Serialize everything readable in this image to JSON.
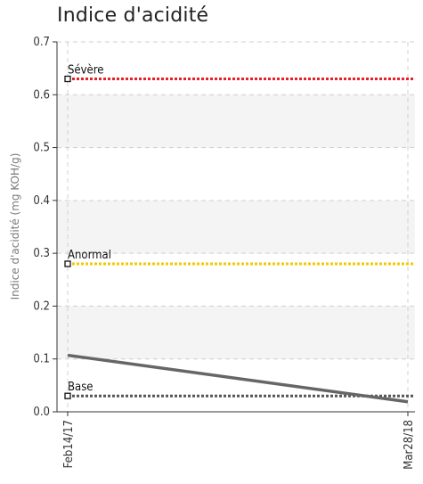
{
  "chart_data": {
    "type": "line",
    "title": "Indice d'acidité",
    "ylabel": "Indice d'acidité (mg KOH/g)",
    "xlabel": "",
    "ylim": [
      0,
      0.7
    ],
    "yticks": [
      "0.0",
      "0.1",
      "0.2",
      "0.3",
      "0.4",
      "0.5",
      "0.6",
      "0.7"
    ],
    "xticks": [
      "Feb14/17",
      "Mar28/18"
    ],
    "grid": true,
    "series": [
      {
        "values": [
          0.107,
          0.019
        ],
        "x": [
          "Feb14/17",
          "Mar28/18"
        ],
        "color": "#666666"
      }
    ],
    "reference_lines": [
      {
        "label": "Sévère",
        "value": 0.63,
        "color": "#e8202a"
      },
      {
        "label": "Anormal",
        "value": 0.28,
        "color": "#f4c800"
      },
      {
        "label": "Base",
        "value": 0.03,
        "color": "#555555"
      }
    ],
    "colors": {
      "band": "#f4f4f4",
      "grid": "#d0d0d0",
      "axis": "#333333"
    }
  }
}
